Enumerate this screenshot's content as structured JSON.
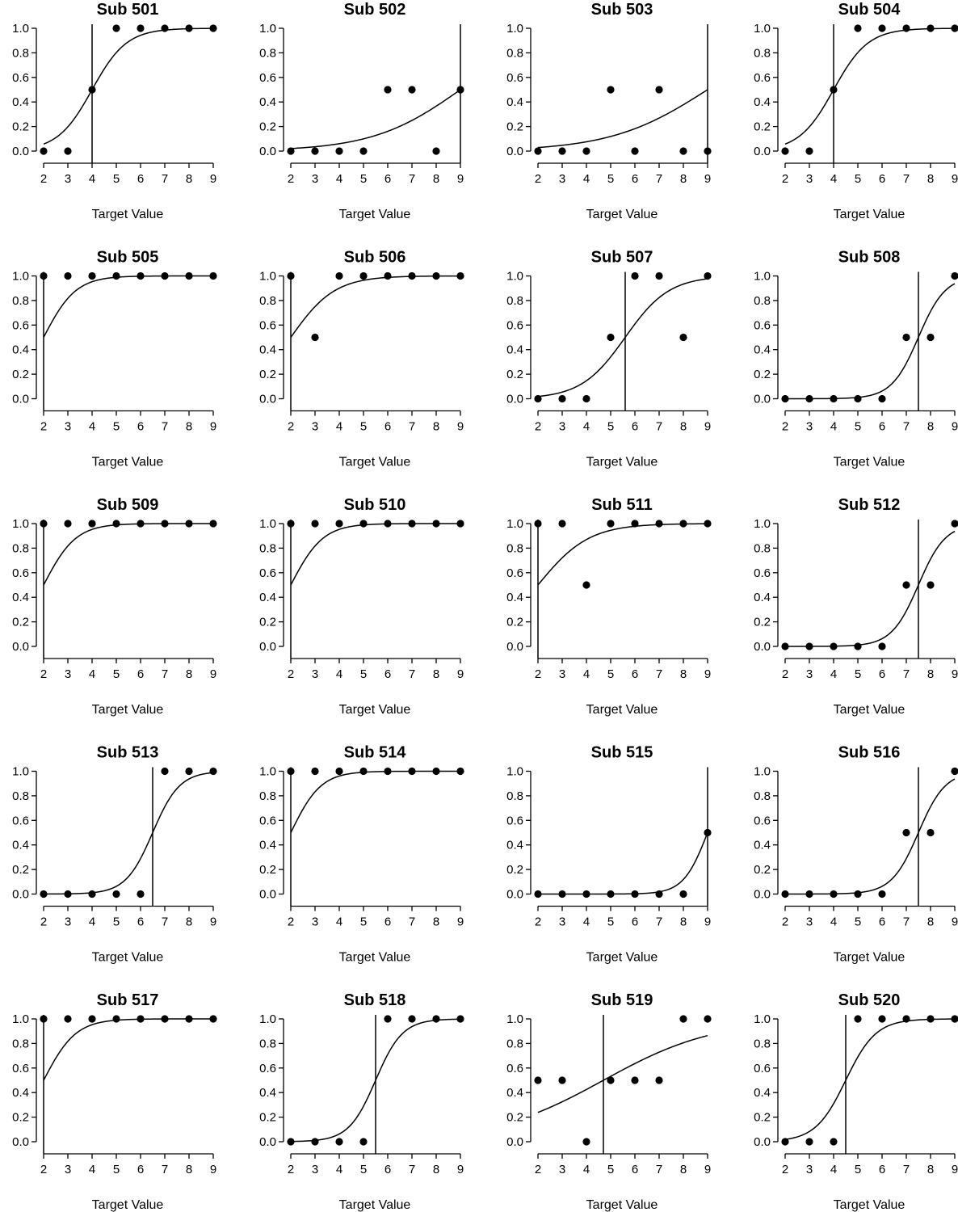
{
  "chart_data": [
    {
      "type": "scatter",
      "title": "Sub 501",
      "xlabel": "Target Value",
      "ylabel": "",
      "x": [
        2,
        3,
        4,
        5,
        6,
        7,
        8,
        9
      ],
      "points": [
        0,
        0,
        0.5,
        1,
        1,
        1,
        1,
        1
      ],
      "threshold": 4,
      "slope": 1.4,
      "xlim": [
        2,
        9
      ],
      "ylim": [
        0,
        1
      ],
      "yticks": [
        "0.0",
        "0.2",
        "0.4",
        "0.6",
        "0.8",
        "1.0"
      ]
    },
    {
      "type": "scatter",
      "title": "Sub 502",
      "xlabel": "Target Value",
      "ylabel": "",
      "x": [
        2,
        3,
        4,
        5,
        6,
        7,
        8,
        9
      ],
      "points": [
        0,
        0,
        0,
        0,
        0.5,
        0.5,
        0,
        0.5
      ],
      "threshold": 9,
      "slope": 0.55,
      "xlim": [
        2,
        9
      ],
      "ylim": [
        0,
        1
      ],
      "yticks": [
        "0.0",
        "0.2",
        "0.4",
        "0.6",
        "0.8",
        "1.0"
      ]
    },
    {
      "type": "scatter",
      "title": "Sub 503",
      "xlabel": "Target Value",
      "ylabel": "",
      "x": [
        2,
        3,
        4,
        5,
        6,
        7,
        8,
        9
      ],
      "points": [
        0,
        0,
        0,
        0.5,
        0,
        0.5,
        0,
        0
      ],
      "threshold": 9,
      "slope": 0.5,
      "xlim": [
        2,
        9
      ],
      "ylim": [
        0,
        1
      ],
      "yticks": [
        "0.0",
        "0.2",
        "0.4",
        "0.6",
        "0.8",
        "1.0"
      ]
    },
    {
      "type": "scatter",
      "title": "Sub 504",
      "xlabel": "Target Value",
      "ylabel": "",
      "x": [
        2,
        3,
        4,
        5,
        6,
        7,
        8,
        9
      ],
      "points": [
        0,
        0,
        0.5,
        1,
        1,
        1,
        1,
        1
      ],
      "threshold": 4,
      "slope": 1.4,
      "xlim": [
        2,
        9
      ],
      "ylim": [
        0,
        1
      ],
      "yticks": [
        "0.0",
        "0.2",
        "0.4",
        "0.6",
        "0.8",
        "1.0"
      ]
    },
    {
      "type": "scatter",
      "title": "Sub 505",
      "xlabel": "Target Value",
      "ylabel": "",
      "x": [
        2,
        3,
        4,
        5,
        6,
        7,
        8,
        9
      ],
      "points": [
        1,
        1,
        1,
        1,
        1,
        1,
        1,
        1
      ],
      "threshold": 2,
      "slope": 1.5,
      "xlim": [
        2,
        9
      ],
      "ylim": [
        0,
        1
      ],
      "yticks": [
        "0.0",
        "0.2",
        "0.4",
        "0.6",
        "0.8",
        "1.0"
      ]
    },
    {
      "type": "scatter",
      "title": "Sub 506",
      "xlabel": "Target Value",
      "ylabel": "",
      "x": [
        2,
        3,
        4,
        5,
        6,
        7,
        8,
        9
      ],
      "points": [
        1,
        0.5,
        1,
        1,
        1,
        1,
        1,
        1
      ],
      "threshold": 2,
      "slope": 1.1,
      "xlim": [
        2,
        9
      ],
      "ylim": [
        0,
        1
      ],
      "yticks": [
        "0.0",
        "0.2",
        "0.4",
        "0.6",
        "0.8",
        "1.0"
      ]
    },
    {
      "type": "scatter",
      "title": "Sub 507",
      "xlabel": "Target Value",
      "ylabel": "",
      "x": [
        2,
        3,
        4,
        5,
        6,
        7,
        8,
        9
      ],
      "points": [
        0,
        0,
        0,
        0.5,
        1,
        1,
        0.5,
        1
      ],
      "threshold": 5.6,
      "slope": 1.1,
      "xlim": [
        2,
        9
      ],
      "ylim": [
        0,
        1
      ],
      "yticks": [
        "0.0",
        "0.2",
        "0.4",
        "0.6",
        "0.8",
        "1.0"
      ]
    },
    {
      "type": "scatter",
      "title": "Sub 508",
      "xlabel": "Target Value",
      "ylabel": "",
      "x": [
        2,
        3,
        4,
        5,
        6,
        7,
        8,
        9
      ],
      "points": [
        0,
        0,
        0,
        0,
        0,
        0.5,
        0.5,
        1
      ],
      "threshold": 7.5,
      "slope": 1.8,
      "xlim": [
        2,
        9
      ],
      "ylim": [
        0,
        1
      ],
      "yticks": [
        "0.0",
        "0.2",
        "0.4",
        "0.6",
        "0.8",
        "1.0"
      ]
    },
    {
      "type": "scatter",
      "title": "Sub 509",
      "xlabel": "Target Value",
      "ylabel": "",
      "x": [
        2,
        3,
        4,
        5,
        6,
        7,
        8,
        9
      ],
      "points": [
        1,
        1,
        1,
        1,
        1,
        1,
        1,
        1
      ],
      "threshold": 2,
      "slope": 1.5,
      "xlim": [
        2,
        9
      ],
      "ylim": [
        0,
        1
      ],
      "yticks": [
        "0.0",
        "0.2",
        "0.4",
        "0.6",
        "0.8",
        "1.0"
      ]
    },
    {
      "type": "scatter",
      "title": "Sub 510",
      "xlabel": "Target Value",
      "ylabel": "",
      "x": [
        2,
        3,
        4,
        5,
        6,
        7,
        8,
        9
      ],
      "points": [
        1,
        1,
        1,
        1,
        1,
        1,
        1,
        1
      ],
      "threshold": 2,
      "slope": 1.5,
      "xlim": [
        2,
        9
      ],
      "ylim": [
        0,
        1
      ],
      "yticks": [
        "0.0",
        "0.2",
        "0.4",
        "0.6",
        "0.8",
        "1.0"
      ]
    },
    {
      "type": "scatter",
      "title": "Sub 511",
      "xlabel": "Target Value",
      "ylabel": "",
      "x": [
        2,
        3,
        4,
        5,
        6,
        7,
        8,
        9
      ],
      "points": [
        1,
        1,
        0.5,
        1,
        1,
        1,
        1,
        1
      ],
      "threshold": 2,
      "slope": 0.95,
      "xlim": [
        2,
        9
      ],
      "ylim": [
        0,
        1
      ],
      "yticks": [
        "0.0",
        "0.2",
        "0.4",
        "0.6",
        "0.8",
        "1.0"
      ]
    },
    {
      "type": "scatter",
      "title": "Sub 512",
      "xlabel": "Target Value",
      "ylabel": "",
      "x": [
        2,
        3,
        4,
        5,
        6,
        7,
        8,
        9
      ],
      "points": [
        0,
        0,
        0,
        0,
        0,
        0.5,
        0.5,
        1
      ],
      "threshold": 7.5,
      "slope": 1.8,
      "xlim": [
        2,
        9
      ],
      "ylim": [
        0,
        1
      ],
      "yticks": [
        "0.0",
        "0.2",
        "0.4",
        "0.6",
        "0.8",
        "1.0"
      ]
    },
    {
      "type": "scatter",
      "title": "Sub 513",
      "xlabel": "Target Value",
      "ylabel": "",
      "x": [
        2,
        3,
        4,
        5,
        6,
        7,
        8,
        9
      ],
      "points": [
        0,
        0,
        0,
        0,
        0,
        1,
        1,
        1
      ],
      "threshold": 6.5,
      "slope": 1.8,
      "xlim": [
        2,
        9
      ],
      "ylim": [
        0,
        1
      ],
      "yticks": [
        "0.0",
        "0.2",
        "0.4",
        "0.6",
        "0.8",
        "1.0"
      ]
    },
    {
      "type": "scatter",
      "title": "Sub 514",
      "xlabel": "Target Value",
      "ylabel": "",
      "x": [
        2,
        3,
        4,
        5,
        6,
        7,
        8,
        9
      ],
      "points": [
        1,
        1,
        1,
        1,
        1,
        1,
        1,
        1
      ],
      "threshold": 2,
      "slope": 1.6,
      "xlim": [
        2,
        9
      ],
      "ylim": [
        0,
        1
      ],
      "yticks": [
        "0.0",
        "0.2",
        "0.4",
        "0.6",
        "0.8",
        "1.0"
      ]
    },
    {
      "type": "scatter",
      "title": "Sub 515",
      "xlabel": "Target Value",
      "ylabel": "",
      "x": [
        2,
        3,
        4,
        5,
        6,
        7,
        8,
        9
      ],
      "points": [
        0,
        0,
        0,
        0,
        0,
        0,
        0,
        0.5
      ],
      "threshold": 9,
      "slope": 2.0,
      "xlim": [
        2,
        9
      ],
      "ylim": [
        0,
        1
      ],
      "yticks": [
        "0.0",
        "0.2",
        "0.4",
        "0.6",
        "0.8",
        "1.0"
      ]
    },
    {
      "type": "scatter",
      "title": "Sub 516",
      "xlabel": "Target Value",
      "ylabel": "",
      "x": [
        2,
        3,
        4,
        5,
        6,
        7,
        8,
        9
      ],
      "points": [
        0,
        0,
        0,
        0,
        0,
        0.5,
        0.5,
        1
      ],
      "threshold": 7.5,
      "slope": 1.8,
      "xlim": [
        2,
        9
      ],
      "ylim": [
        0,
        1
      ],
      "yticks": [
        "0.0",
        "0.2",
        "0.4",
        "0.6",
        "0.8",
        "1.0"
      ]
    },
    {
      "type": "scatter",
      "title": "Sub 517",
      "xlabel": "Target Value",
      "ylabel": "",
      "x": [
        2,
        3,
        4,
        5,
        6,
        7,
        8,
        9
      ],
      "points": [
        1,
        1,
        1,
        1,
        1,
        1,
        1,
        1
      ],
      "threshold": 2,
      "slope": 1.5,
      "xlim": [
        2,
        9
      ],
      "ylim": [
        0,
        1
      ],
      "yticks": [
        "0.0",
        "0.2",
        "0.4",
        "0.6",
        "0.8",
        "1.0"
      ]
    },
    {
      "type": "scatter",
      "title": "Sub 518",
      "xlabel": "Target Value",
      "ylabel": "",
      "x": [
        2,
        3,
        4,
        5,
        6,
        7,
        8,
        9
      ],
      "points": [
        0,
        0,
        0,
        0,
        1,
        1,
        1,
        1
      ],
      "threshold": 5.5,
      "slope": 1.8,
      "xlim": [
        2,
        9
      ],
      "ylim": [
        0,
        1
      ],
      "yticks": [
        "0.0",
        "0.2",
        "0.4",
        "0.6",
        "0.8",
        "1.0"
      ]
    },
    {
      "type": "scatter",
      "title": "Sub 519",
      "xlabel": "Target Value",
      "ylabel": "",
      "x": [
        2,
        3,
        4,
        5,
        6,
        7,
        8,
        9
      ],
      "points": [
        0.5,
        0.5,
        0,
        0.5,
        0.5,
        0.5,
        1,
        1
      ],
      "threshold": 4.7,
      "slope": 0.43,
      "xlim": [
        2,
        9
      ],
      "ylim": [
        0,
        1
      ],
      "yticks": [
        "0.0",
        "0.2",
        "0.4",
        "0.6",
        "0.8",
        "1.0"
      ]
    },
    {
      "type": "scatter",
      "title": "Sub 520",
      "xlabel": "Target Value",
      "ylabel": "",
      "x": [
        2,
        3,
        4,
        5,
        6,
        7,
        8,
        9
      ],
      "points": [
        0,
        0,
        0,
        1,
        1,
        1,
        1,
        1
      ],
      "threshold": 4.5,
      "slope": 1.6,
      "xlim": [
        2,
        9
      ],
      "ylim": [
        0,
        1
      ],
      "yticks": [
        "0.0",
        "0.2",
        "0.4",
        "0.6",
        "0.8",
        "1.0"
      ]
    }
  ]
}
